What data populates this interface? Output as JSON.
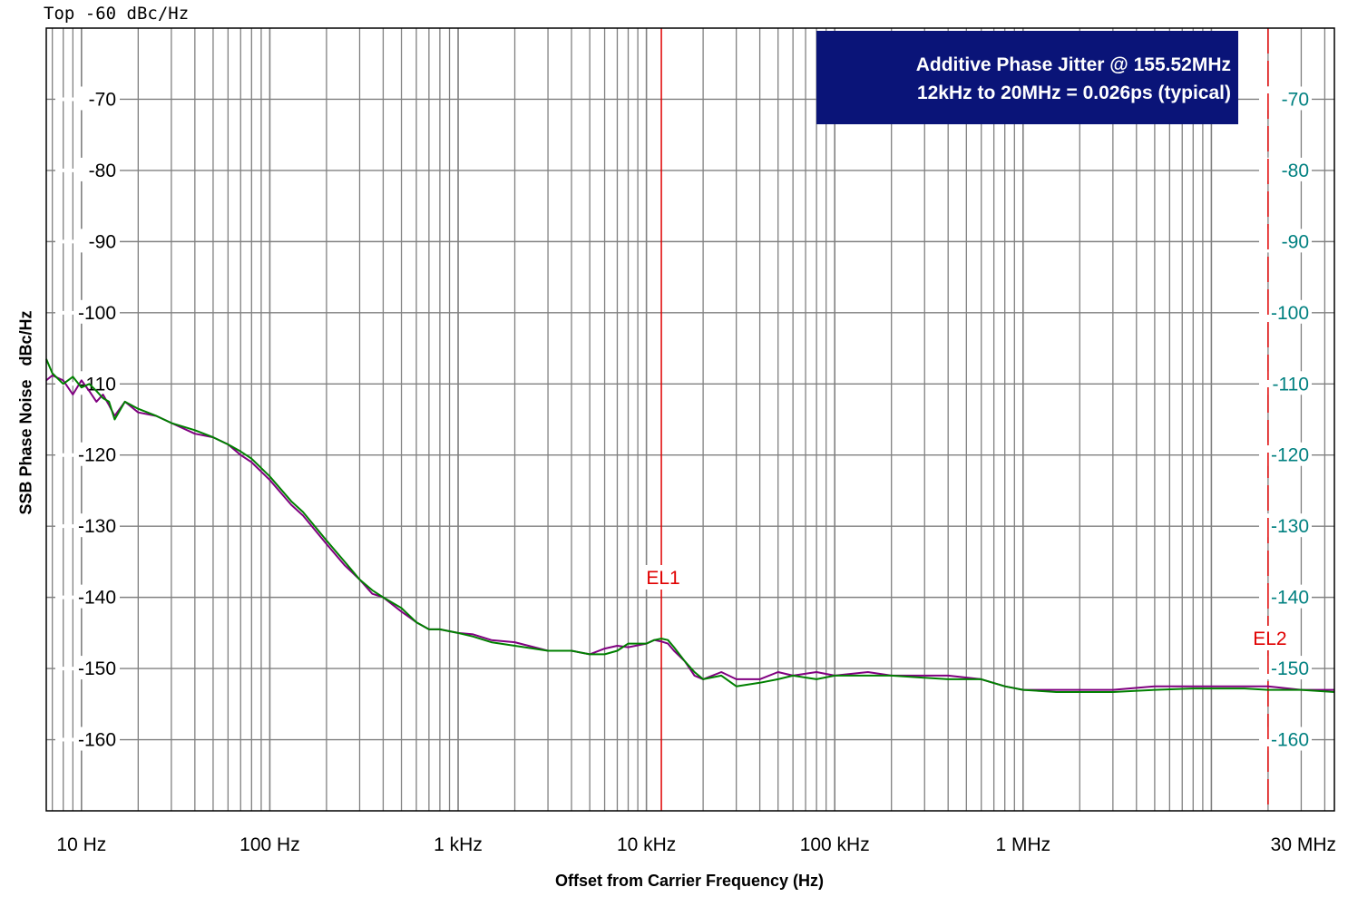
{
  "chart_data": {
    "type": "line",
    "top_label": "Top -60 dBc/Hz",
    "xlabel": "Offset from Carrier Frequency (Hz)",
    "ylabel": "SSB Phase Noise   dBc/Hz",
    "x_scale": "log",
    "xlim": [
      6.5,
      45000000
    ],
    "ylim": [
      -170,
      -60
    ],
    "grid": true,
    "x_ticks": [
      {
        "value": 10,
        "label": "10 Hz"
      },
      {
        "value": 100,
        "label": "100 Hz"
      },
      {
        "value": 1000,
        "label": "1 kHz"
      },
      {
        "value": 10000,
        "label": "10 kHz"
      },
      {
        "value": 100000,
        "label": "100 kHz"
      },
      {
        "value": 1000000,
        "label": "1 MHz"
      },
      {
        "value": 30000000,
        "label": "30 MHz"
      }
    ],
    "y_ticks_left": [
      "-70",
      "-80",
      "-90",
      "-100",
      "-110",
      "-120",
      "-130",
      "-140",
      "-150",
      "-160"
    ],
    "y_ticks_right": [
      "-70",
      "-80",
      "-90",
      "-100",
      "-110",
      "-120",
      "-130",
      "-140",
      "-150",
      "-160"
    ],
    "y_tick_values": [
      -70,
      -80,
      -90,
      -100,
      -110,
      -120,
      -130,
      -140,
      -150,
      -160
    ],
    "markers": [
      {
        "label": "EL1",
        "x": 12000
      },
      {
        "label": "EL2",
        "x": 20000000
      }
    ],
    "annotation": {
      "line1": "Additive Phase Jitter @ 155.52MHz",
      "line2": "12kHz to 20MHz = 0.026ps (typical)"
    },
    "series": [
      {
        "color": "#800080",
        "x": [
          6.5,
          7,
          8,
          9,
          10,
          11,
          12,
          13,
          14,
          15,
          17,
          20,
          25,
          30,
          40,
          50,
          60,
          70,
          80,
          100,
          130,
          150,
          200,
          250,
          300,
          350,
          400,
          500,
          600,
          700,
          800,
          1000,
          1200,
          1500,
          2000,
          3000,
          4000,
          5000,
          6000,
          7000,
          8000,
          10000,
          11000,
          12000,
          13000,
          14000,
          16000,
          18000,
          20000,
          25000,
          30000,
          40000,
          50000,
          60000,
          80000,
          100000,
          150000,
          200000,
          300000,
          400000,
          600000,
          800000,
          1000000,
          1500000,
          2000000,
          3000000,
          5000000,
          8000000,
          10000000,
          15000000,
          20000000,
          30000000,
          45000000
        ],
        "y": [
          -109.5,
          -108.8,
          -109.5,
          -111.5,
          -109.5,
          -111,
          -112.5,
          -111.5,
          -113,
          -114.5,
          -112.5,
          -114,
          -114.5,
          -115.5,
          -117,
          -117.5,
          -118.5,
          -120,
          -121,
          -123.5,
          -127,
          -128.5,
          -132.5,
          -135.5,
          -137.5,
          -139.5,
          -140,
          -142,
          -143.5,
          -144.5,
          -144.5,
          -145,
          -145.2,
          -146,
          -146.3,
          -147.5,
          -147.5,
          -148,
          -147.2,
          -146.8,
          -147,
          -146.5,
          -146,
          -146.2,
          -146.5,
          -147.5,
          -149,
          -151,
          -151.5,
          -150.5,
          -151.5,
          -151.5,
          -150.5,
          -151,
          -150.5,
          -151,
          -150.5,
          -151,
          -151,
          -151,
          -151.5,
          -152.5,
          -153,
          -153,
          -153,
          -153,
          -152.5,
          -152.5,
          -152.5,
          -152.5,
          -152.5,
          -153,
          -153
        ]
      },
      {
        "color": "#008000",
        "x": [
          6.5,
          7,
          8,
          9,
          10,
          11,
          12,
          13,
          14,
          15,
          17,
          20,
          25,
          30,
          40,
          50,
          60,
          70,
          80,
          100,
          130,
          150,
          200,
          250,
          300,
          350,
          400,
          500,
          600,
          700,
          800,
          1000,
          1200,
          1500,
          2000,
          3000,
          4000,
          5000,
          6000,
          7000,
          8000,
          10000,
          11000,
          12000,
          13000,
          14000,
          16000,
          18000,
          20000,
          25000,
          30000,
          40000,
          50000,
          60000,
          80000,
          100000,
          150000,
          200000,
          300000,
          400000,
          600000,
          800000,
          1000000,
          1500000,
          2000000,
          3000000,
          5000000,
          8000000,
          10000000,
          15000000,
          20000000,
          30000000,
          45000000
        ],
        "y": [
          -106.5,
          -108.5,
          -110,
          -109,
          -110.5,
          -110,
          -111,
          -112,
          -112.5,
          -115,
          -112.5,
          -113.5,
          -114.5,
          -115.5,
          -116.5,
          -117.5,
          -118.5,
          -119.5,
          -120.5,
          -123,
          -126.5,
          -128,
          -132,
          -135,
          -137.5,
          -139,
          -140,
          -141.5,
          -143.5,
          -144.5,
          -144.5,
          -145,
          -145.5,
          -146.3,
          -146.8,
          -147.5,
          -147.5,
          -148,
          -148,
          -147.5,
          -146.5,
          -146.5,
          -146,
          -145.8,
          -146,
          -147,
          -149,
          -150.5,
          -151.5,
          -151,
          -152.5,
          -152,
          -151.5,
          -151,
          -151.5,
          -151,
          -151,
          -151,
          -151.3,
          -151.5,
          -151.5,
          -152.5,
          -153,
          -153.3,
          -153.3,
          -153.3,
          -153,
          -152.8,
          -152.8,
          -152.8,
          -153,
          -153,
          -153.3
        ]
      }
    ]
  }
}
